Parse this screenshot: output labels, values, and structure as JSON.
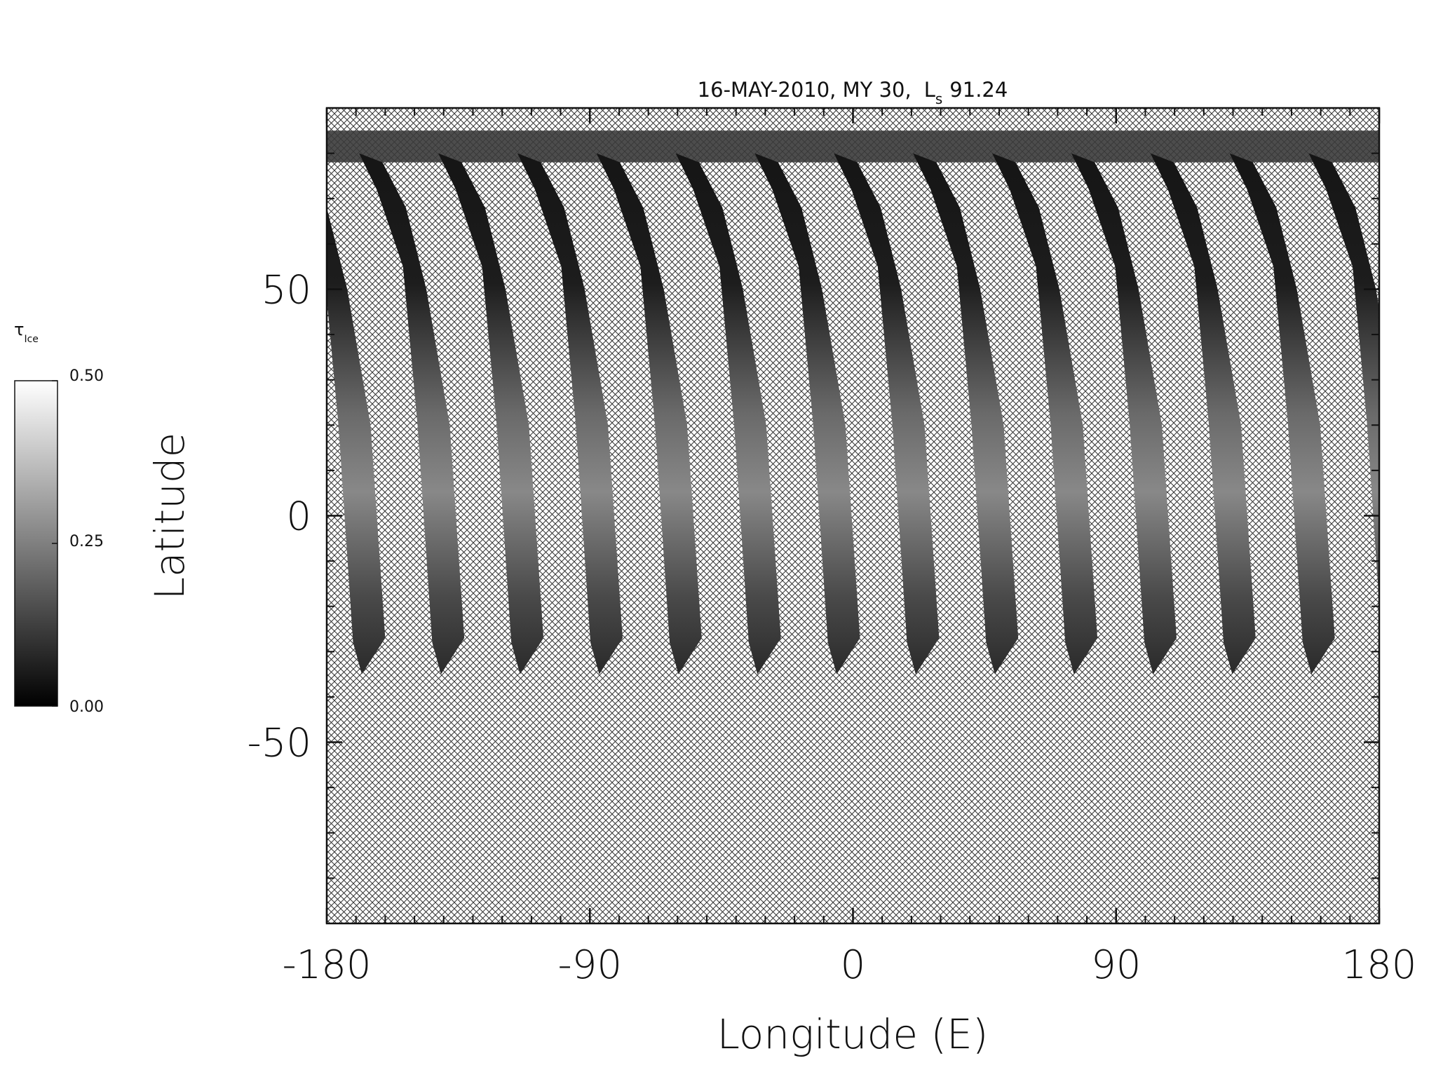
{
  "chart_data": {
    "type": "swath-map",
    "title": [
      "16-MAY-2010, MY 30,",
      "L",
      "s",
      "91.24"
    ],
    "xlabel": "Longitude (E)",
    "ylabel": "Latitude",
    "xlim": [
      -180,
      180
    ],
    "ylim": [
      -90,
      90
    ],
    "xticks": [
      -180,
      -90,
      0,
      90,
      180
    ],
    "yticks": [
      -50,
      0,
      50
    ],
    "colorbar": {
      "label": [
        "τ",
        "Ice"
      ],
      "clim": [
        0,
        0.5
      ],
      "ticks": [
        {
          "value": 0,
          "label": "0.00"
        },
        {
          "value": 0.25,
          "label": "0.25"
        },
        {
          "value": 0.5,
          "label": "0.50"
        }
      ]
    }
  }
}
